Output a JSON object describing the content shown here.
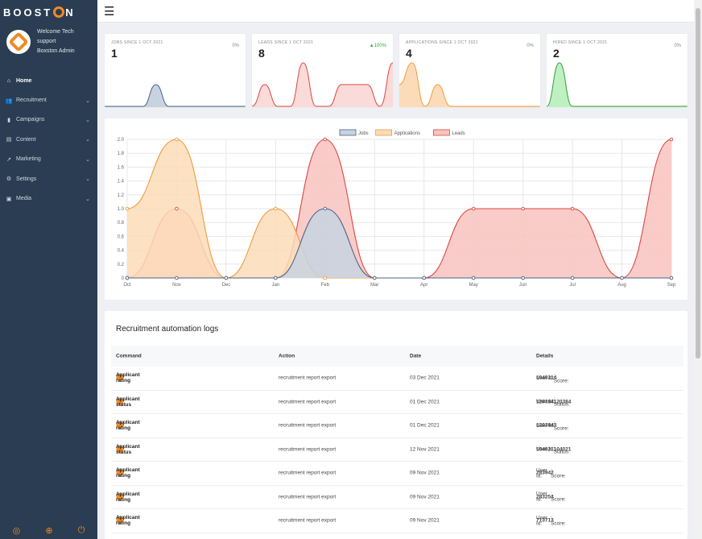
{
  "brand": {
    "prefix": "BOOST",
    "suffix": "N"
  },
  "profile": {
    "line1": "Welcome Tech support",
    "line2": "Boxston Admin"
  },
  "nav": [
    {
      "label": "Home",
      "icon": "home-icon",
      "glyph": "⌂",
      "chevron": false,
      "active": true
    },
    {
      "label": "Recruitment",
      "icon": "users-icon",
      "glyph": "👥",
      "chevron": true
    },
    {
      "label": "Campaigns",
      "icon": "signal-icon",
      "glyph": "▮",
      "chevron": true
    },
    {
      "label": "Content",
      "icon": "file-icon",
      "glyph": "▤",
      "chevron": true
    },
    {
      "label": "Marketing",
      "icon": "chart-icon",
      "glyph": "↗",
      "chevron": true
    },
    {
      "label": "Settings",
      "icon": "gears-icon",
      "glyph": "⚙",
      "chevron": true
    },
    {
      "label": "Media",
      "icon": "photo-icon",
      "glyph": "▣",
      "chevron": true
    }
  ],
  "kpis": [
    {
      "label": "JOBS SINCE 1 OCT 2021",
      "value": "1",
      "pct": "0%",
      "up": false,
      "stroke": "#4a6485",
      "fill": "#c7d3e0",
      "curve": [
        0,
        0,
        0,
        0,
        1,
        0,
        0,
        0,
        0,
        0,
        0,
        0
      ]
    },
    {
      "label": "LEADS SINCE 1 OCT 2021",
      "value": "8",
      "pct": "▲100%",
      "up": true,
      "stroke": "#d9473f",
      "fill": "#fadbd9",
      "curve": [
        0,
        1,
        0,
        0,
        2,
        0,
        0,
        1,
        1,
        1,
        0,
        2
      ]
    },
    {
      "label": "APPLICATIONS SINCE 1 OCT 2021",
      "value": "4",
      "pct": "0%",
      "up": false,
      "stroke": "#ef9a3d",
      "fill": "#fcdcb8",
      "curve": [
        1,
        2,
        0,
        1,
        0,
        0,
        0,
        0,
        0,
        0,
        0,
        0
      ]
    },
    {
      "label": "HIRED SINCE 1 OCT 2021",
      "value": "2",
      "pct": "0%",
      "up": false,
      "stroke": "#2e9c3a",
      "fill": "#bff0c2",
      "curve": [
        0,
        2,
        0,
        0,
        0,
        0,
        0,
        0,
        0,
        0,
        0,
        0
      ]
    }
  ],
  "chart_data": {
    "type": "area",
    "categories": [
      "Oct",
      "Nov",
      "Dec",
      "Jan",
      "Feb",
      "Mar",
      "Apr",
      "May",
      "Jun",
      "Jul",
      "Aug",
      "Sep"
    ],
    "series": [
      {
        "name": "Jobs",
        "values": [
          0,
          0,
          0,
          0,
          1,
          0,
          0,
          0,
          0,
          0,
          0,
          0
        ],
        "stroke": "#4a6485",
        "fill": "#c7d3e0"
      },
      {
        "name": "Applications",
        "values": [
          1,
          2,
          0,
          1,
          0,
          0,
          0,
          0,
          0,
          0,
          0,
          0
        ],
        "stroke": "#ef9a3d",
        "fill": "#fcdcb8"
      },
      {
        "name": "Leads",
        "values": [
          0,
          1,
          0,
          0,
          2,
          0,
          0,
          1,
          1,
          1,
          0,
          2
        ],
        "stroke": "#d9473f",
        "fill": "#f9c3bf"
      }
    ],
    "ylim": [
      0,
      2.0
    ],
    "yticks": [
      "0",
      "0.2",
      "0.4",
      "0.6",
      "0.8",
      "1.0",
      "1.2",
      "1.4",
      "1.6",
      "1.8",
      "2.0"
    ],
    "legend": "top-center",
    "grid": true
  },
  "logs": {
    "title": "Recruitment automation logs",
    "columns": [
      "Command",
      "Action",
      "Date",
      "Details"
    ],
    "rows": [
      {
        "command": "Applicant rating",
        "action": "recruitment report export",
        "date": "03 Dec 2021",
        "d1": "User Id: ",
        "d1b": "104021",
        "d2": "; Score: ",
        "d2b": "4"
      },
      {
        "command": "Applicant status",
        "action": "recruitment report export",
        "date": "01 Dec 2021",
        "d1": "User Id: ",
        "d1b": "120384",
        "d2": "; Status:",
        "d2b": "120384"
      },
      {
        "command": "Applicant rating",
        "action": "recruitment report export",
        "date": "01 Dec 2021",
        "d1": "User Id: ",
        "d1b": "120384",
        "d2": "; Score: ",
        "d2b": "3"
      },
      {
        "command": "Applicant status",
        "action": "recruitment report export",
        "date": "12 Nov 2021",
        "d1": "User Id: ",
        "d1b": "104021",
        "d2": "; Status:",
        "d2b": "104021"
      },
      {
        "command": "Applicant rating",
        "action": "recruitment report export",
        "date": "09 Nov 2021",
        "d1": "User Id: ",
        "d1b": "28394",
        "d2": "; Score: ",
        "d2b": "2"
      },
      {
        "command": "Applicant rating",
        "action": "recruitment report export",
        "date": "09 Nov 2021",
        "d1": "User Id: ",
        "d1b": "28325",
        "d2": "; Score: ",
        "d2b": "4"
      },
      {
        "command": "Applicant rating",
        "action": "recruitment report export",
        "date": "09 Nov 2021",
        "d1": "User Id: ",
        "d1b": "71371",
        "d2": "; Score: ",
        "d2b": "3"
      }
    ]
  },
  "colors": {
    "sidebar": "#2a3d52",
    "accent": "#f08a24"
  }
}
